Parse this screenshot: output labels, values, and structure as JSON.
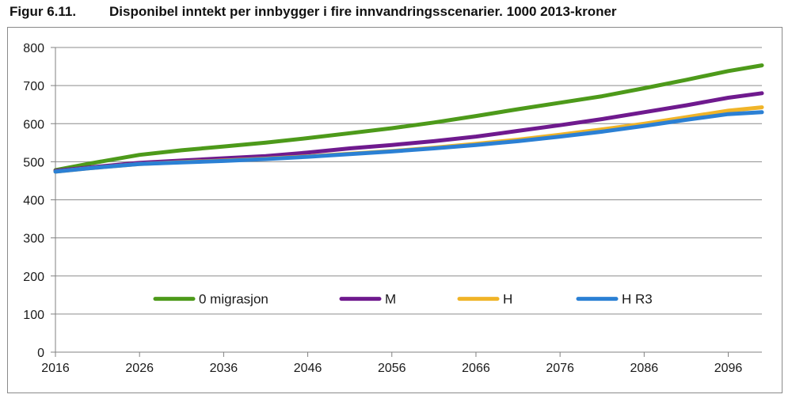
{
  "figure": {
    "number": "Figur 6.11.",
    "title": "Disponibel inntekt per innbygger i fire innvandringsscenarier. 1000 2013-kroner"
  },
  "chart_data": {
    "type": "line",
    "title": "Disponibel inntekt per innbygger i fire innvandringsscenarier. 1000 2013-kroner",
    "xlabel": "",
    "ylabel": "",
    "xlim": [
      2016,
      2100
    ],
    "ylim": [
      0,
      800
    ],
    "x_ticks": [
      2016,
      2026,
      2036,
      2046,
      2056,
      2066,
      2076,
      2086,
      2096
    ],
    "y_ticks": [
      0,
      100,
      200,
      300,
      400,
      500,
      600,
      700,
      800
    ],
    "grid": "horizontal",
    "legend": "inside-lower-center",
    "x": [
      2016,
      2020,
      2026,
      2031,
      2036,
      2041,
      2046,
      2051,
      2056,
      2061,
      2066,
      2071,
      2076,
      2081,
      2086,
      2091,
      2096,
      2100
    ],
    "series": [
      {
        "name": "0 migrasjon",
        "color": "#4d9a1a",
        "values": [
          478,
          495,
          518,
          530,
          540,
          550,
          562,
          575,
          588,
          603,
          620,
          638,
          655,
          672,
          693,
          715,
          738,
          753
        ]
      },
      {
        "name": "M",
        "color": "#6f1a8e",
        "values": [
          476,
          485,
          497,
          503,
          509,
          515,
          524,
          535,
          544,
          554,
          566,
          581,
          596,
          612,
          630,
          648,
          668,
          680
        ]
      },
      {
        "name": "H",
        "color": "#f0b428",
        "values": [
          474,
          483,
          494,
          499,
          503,
          508,
          514,
          521,
          528,
          537,
          547,
          558,
          571,
          585,
          600,
          617,
          634,
          643
        ]
      },
      {
        "name": "H R3",
        "color": "#2b80d4",
        "values": [
          474,
          483,
          494,
          498,
          502,
          507,
          513,
          520,
          527,
          535,
          544,
          554,
          566,
          579,
          594,
          610,
          625,
          630
        ]
      }
    ]
  }
}
